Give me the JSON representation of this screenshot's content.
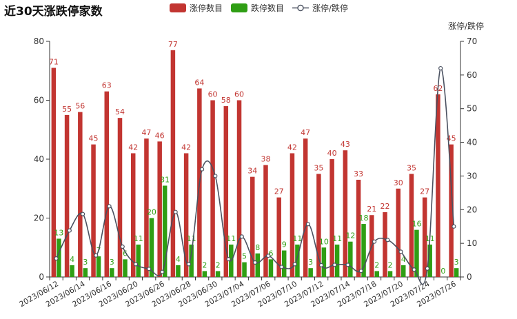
{
  "chart_data": {
    "type": "bar",
    "title": "近30天涨跌停家数",
    "y2label": "涨停/跌停",
    "ylim": [
      0,
      80
    ],
    "y2lim": [
      0,
      70
    ],
    "yticks": [
      0,
      20,
      40,
      60,
      80
    ],
    "y2ticks": [
      0,
      10,
      20,
      30,
      40,
      50,
      60,
      70
    ],
    "x": [
      "2023/06/12",
      "2023/06/13",
      "2023/06/14",
      "2023/06/15",
      "2023/06/16",
      "2023/06/19",
      "2023/06/20",
      "2023/06/21",
      "2023/06/26",
      "2023/06/27",
      "2023/06/28",
      "2023/06/29",
      "2023/06/30",
      "2023/07/03",
      "2023/07/04",
      "2023/07/05",
      "2023/07/06",
      "2023/07/07",
      "2023/07/10",
      "2023/07/11",
      "2023/07/12",
      "2023/07/13",
      "2023/07/14",
      "2023/07/17",
      "2023/07/18",
      "2023/07/19",
      "2023/07/20",
      "2023/07/21",
      "2023/07/24",
      "2023/07/25",
      "2023/07/26"
    ],
    "xtick_labels": [
      "2023/06/12",
      "2023/06/14",
      "2023/06/16",
      "2023/06/20",
      "2023/06/26",
      "2023/06/28",
      "2023/06/30",
      "2023/07/04",
      "2023/07/06",
      "2023/07/10",
      "2023/07/12",
      "2023/07/14",
      "2023/07/18",
      "2023/07/20",
      "2023/07/24",
      "2023/07/26"
    ],
    "series": [
      {
        "name": "涨停数目",
        "color": "#c23531",
        "axis": "left",
        "values": [
          71,
          55,
          56,
          45,
          63,
          54,
          42,
          47,
          46,
          77,
          42,
          64,
          60,
          58,
          60,
          34,
          38,
          27,
          42,
          47,
          35,
          40,
          43,
          33,
          21,
          22,
          30,
          35,
          27,
          62,
          45
        ]
      },
      {
        "name": "跌停数目",
        "color": "#2f9e14",
        "axis": "left",
        "values": [
          13,
          4,
          3,
          7,
          3,
          6,
          11,
          20,
          31,
          4,
          11,
          2,
          2,
          11,
          5,
          8,
          6,
          9,
          11,
          3,
          10,
          11,
          12,
          18,
          2,
          2,
          4,
          16,
          11,
          0,
          3
        ]
      },
      {
        "name": "涨停/跌停",
        "color": "#4a5160",
        "axis": "right",
        "values": [
          5.5,
          13.8,
          18.7,
          6.4,
          21.0,
          9.0,
          3.8,
          2.4,
          1.5,
          19.3,
          3.8,
          32.0,
          30.0,
          5.3,
          12.0,
          4.3,
          6.3,
          3.0,
          3.8,
          15.7,
          3.5,
          3.6,
          3.6,
          1.8,
          10.5,
          11.0,
          7.5,
          2.2,
          2.5,
          62.0,
          15.0
        ]
      }
    ],
    "legend_position": "top-center",
    "grid": false
  }
}
